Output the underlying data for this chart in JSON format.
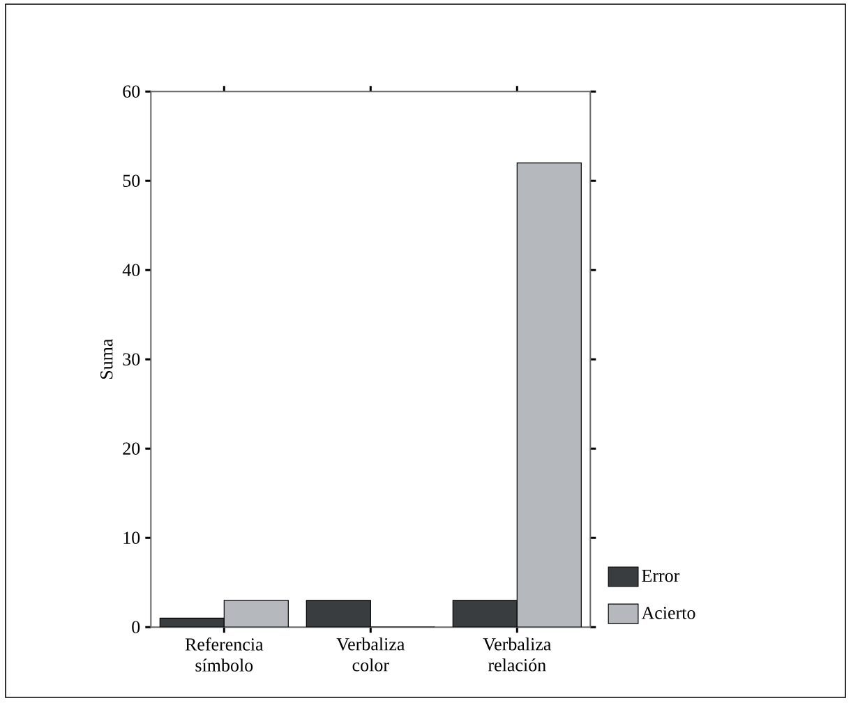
{
  "chart_data": {
    "type": "bar",
    "ylabel": "Suma",
    "categories": [
      "Referencia símbolo",
      "Verbaliza color",
      "Verbaliza relación"
    ],
    "series": [
      {
        "name": "Error",
        "color": "#3a3d3f",
        "values": [
          1,
          3,
          3
        ]
      },
      {
        "name": "Acierto",
        "color": "#b5b9bd",
        "values": [
          3,
          0,
          52
        ]
      }
    ],
    "ylim": [
      0,
      60
    ],
    "yticks": [
      0,
      10,
      20,
      30,
      40,
      50,
      60
    ],
    "grid": false,
    "legend": "bottom right"
  }
}
